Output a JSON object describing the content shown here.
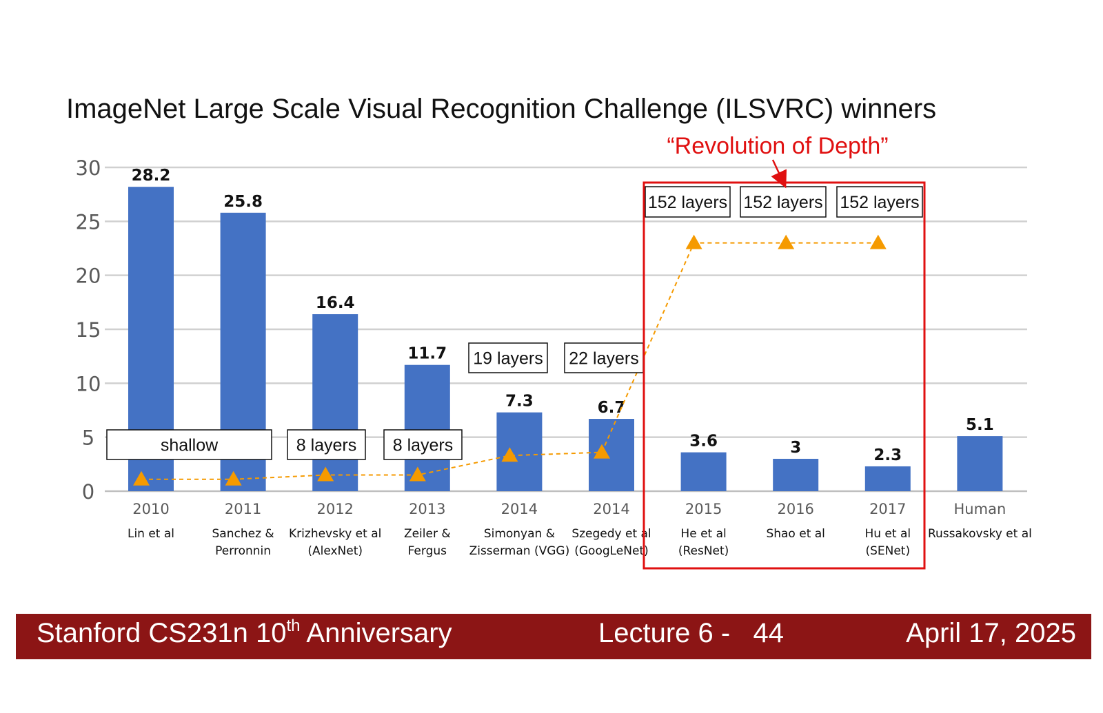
{
  "slide": {
    "title": "ImageNet Large Scale Visual Recognition Challenge (ILSVRC) winners",
    "highlight_label": "“Revolution of Depth”"
  },
  "chart_data": {
    "type": "bar",
    "title": "ImageNet Large Scale Visual Recognition Challenge (ILSVRC) winners",
    "xlabel": "",
    "ylabel": "",
    "ylim": [
      0,
      30
    ],
    "yticks": [
      0,
      5,
      10,
      15,
      20,
      25,
      30
    ],
    "grid": true,
    "bar_color": "#4472c4",
    "categories": [
      "2010",
      "2011",
      "2012",
      "2013",
      "2014",
      "2014",
      "2015",
      "2016",
      "2017",
      "Human"
    ],
    "authors": [
      [
        "Lin et al"
      ],
      [
        "Sanchez &",
        "Perronnin"
      ],
      [
        "Krizhevsky et al",
        "(AlexNet)"
      ],
      [
        "Zeiler &",
        "Fergus"
      ],
      [
        "Simonyan &",
        "Zisserman (VGG)"
      ],
      [
        "Szegedy et al",
        "(GoogLeNet)"
      ],
      [
        "He et al",
        "(ResNet)"
      ],
      [
        "Shao et al"
      ],
      [
        "Hu et al",
        "(SENet)"
      ],
      [
        "Russakovsky et al"
      ]
    ],
    "values": [
      28.2,
      25.8,
      16.4,
      11.7,
      7.3,
      6.7,
      3.6,
      3,
      2.3,
      5.1
    ],
    "value_labels": [
      "28.2",
      "25.8",
      "16.4",
      "11.7",
      "7.3",
      "6.7",
      "3.6",
      "3",
      "2.3",
      "5.1"
    ],
    "depth_series": {
      "color": "#f59a00",
      "style": "dashed line with triangle markers",
      "values": [
        1.1,
        1.1,
        1.5,
        1.5,
        3.3,
        3.6,
        23,
        23,
        23
      ]
    },
    "layer_labels": [
      {
        "text": "shallow",
        "categories": [
          0,
          1
        ]
      },
      {
        "text": "8 layers",
        "categories": [
          2
        ]
      },
      {
        "text": "8 layers",
        "categories": [
          3
        ]
      },
      {
        "text": "19 layers",
        "categories": [
          4
        ]
      },
      {
        "text": "22 layers",
        "categories": [
          5
        ]
      },
      {
        "text": "152 layers",
        "categories": [
          6
        ]
      },
      {
        "text": "152 layers",
        "categories": [
          7
        ]
      },
      {
        "text": "152 layers",
        "categories": [
          8
        ]
      }
    ],
    "highlight": {
      "label": "“Revolution of Depth”",
      "categories": [
        6,
        7,
        8
      ],
      "color": "#e01010"
    }
  },
  "footer": {
    "left_main": "Stanford CS231n 10",
    "left_sup": "th",
    "left_tail": " Anniversary",
    "lecture": "Lecture 6 -   44",
    "date": "April 17, 2025"
  }
}
